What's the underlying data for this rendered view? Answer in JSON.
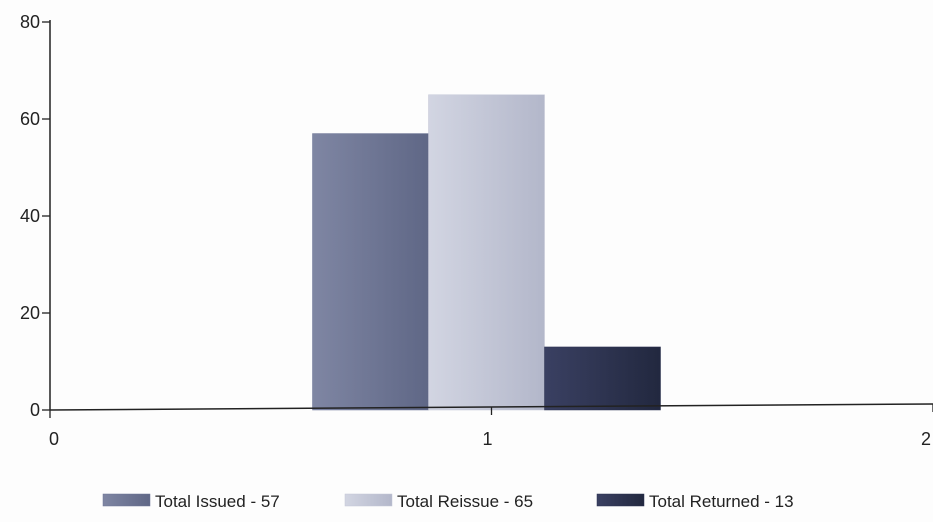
{
  "chart_data": {
    "type": "bar",
    "x": [
      1
    ],
    "xlim": [
      0,
      2
    ],
    "ylim": [
      0,
      80
    ],
    "x_ticks": [
      "0",
      "1",
      "2"
    ],
    "y_ticks": [
      "0",
      "20",
      "40",
      "60",
      "80"
    ],
    "series": [
      {
        "name": "Total Issued - 57",
        "values": [
          57
        ],
        "color": "#6d7595"
      },
      {
        "name": "Total Reissue - 65",
        "values": [
          65
        ],
        "color": "#c3c6d6"
      },
      {
        "name": "Total Returned - 13",
        "values": [
          13
        ],
        "color": "#2b3151"
      }
    ],
    "legend_position": "bottom",
    "grid": false,
    "title": "",
    "xlabel": "",
    "ylabel": ""
  }
}
